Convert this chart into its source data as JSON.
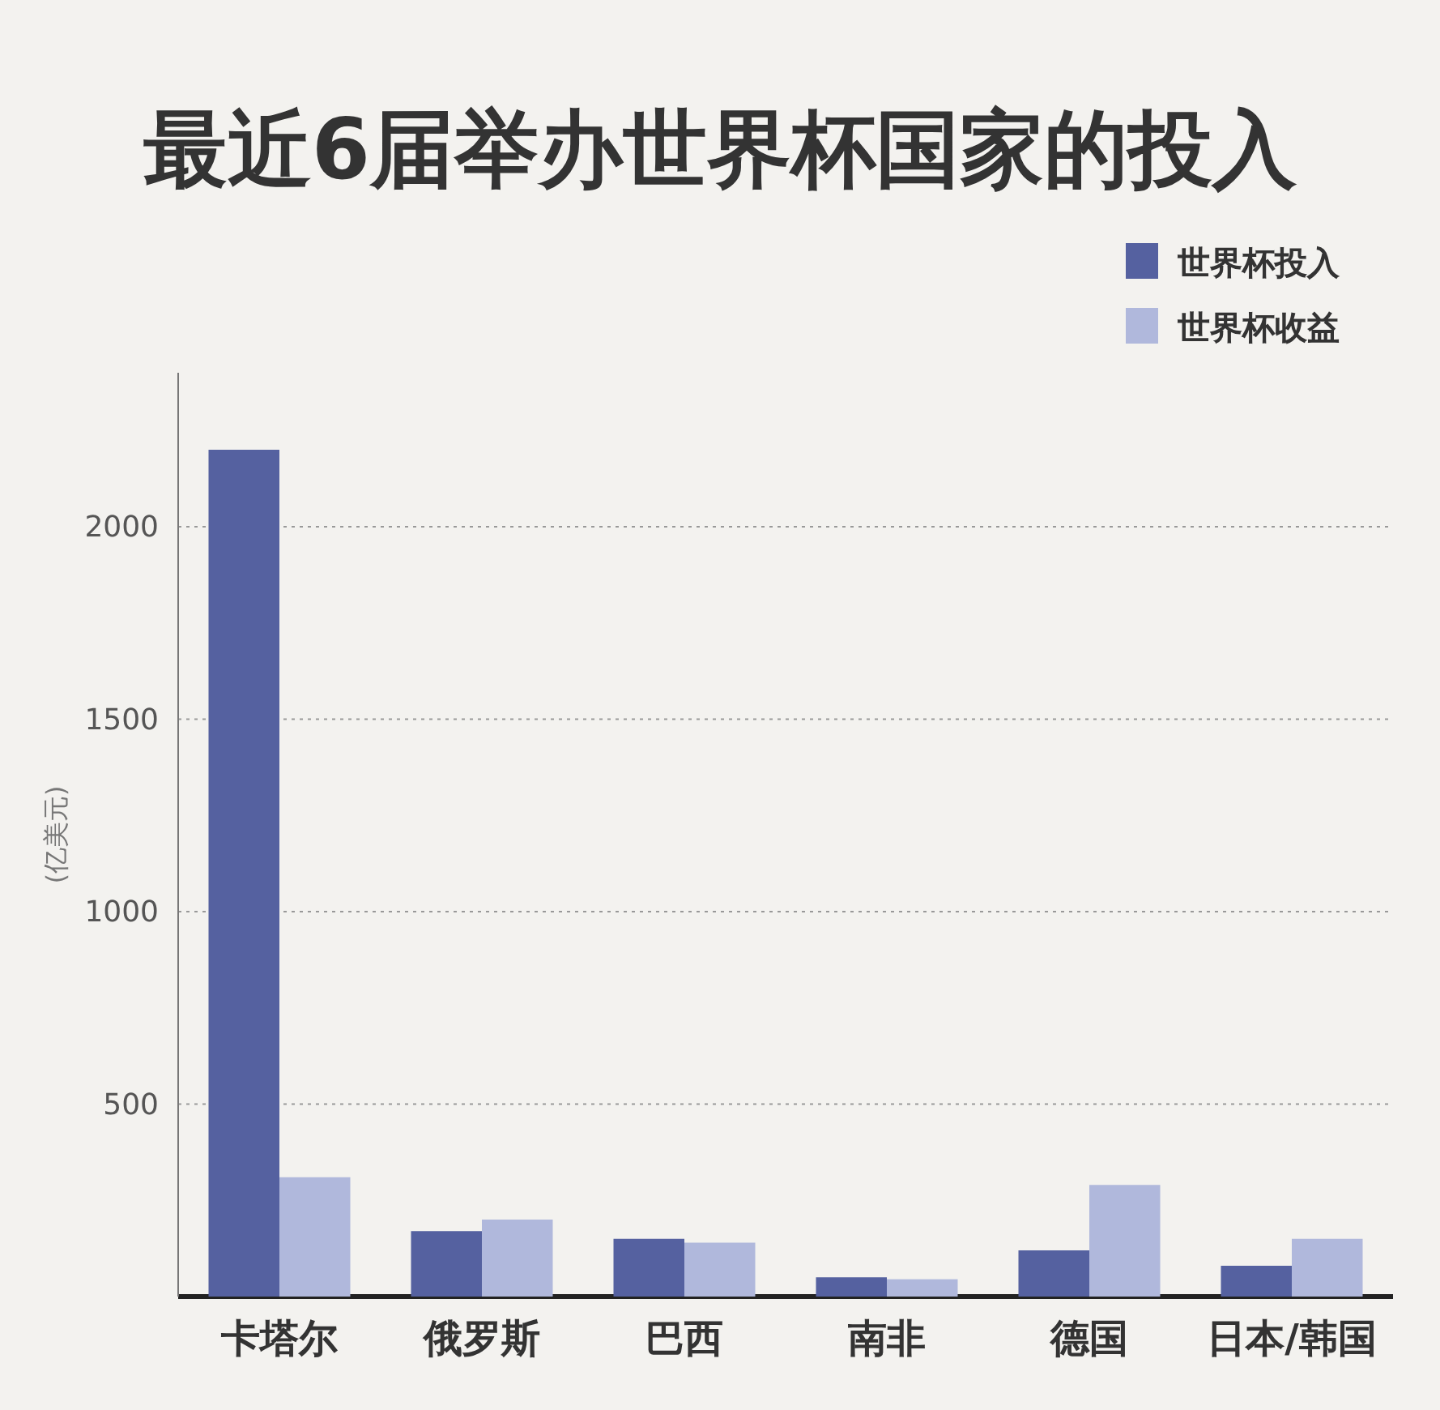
{
  "chart_data": {
    "type": "bar",
    "title": "最近6届举办世界杯国家的投入",
    "ylabel": "(亿美元)",
    "categories": [
      "卡塔尔",
      "俄罗斯",
      "巴西",
      "南非",
      "德国",
      "日本/韩国"
    ],
    "series": [
      {
        "name": "世界杯投入",
        "color": "#5561a0",
        "values": [
          2200,
          170,
          150,
          50,
          120,
          80
        ]
      },
      {
        "name": "世界杯收益",
        "color": "#b0b8dc",
        "values": [
          310,
          200,
          140,
          45,
          290,
          150
        ]
      }
    ],
    "ylim": [
      0,
      2400
    ],
    "yticks": [
      500,
      1000,
      1500,
      2000
    ],
    "grid": "y",
    "legend": "top right"
  }
}
